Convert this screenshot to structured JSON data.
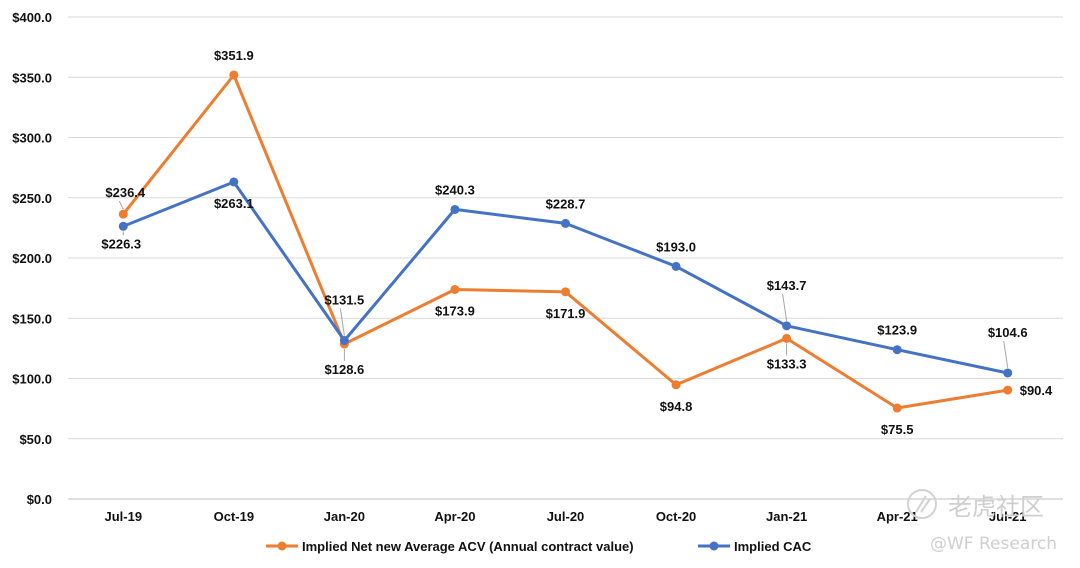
{
  "chart_data": {
    "type": "line",
    "categories": [
      "Jul-19",
      "Oct-19",
      "Jan-20",
      "Apr-20",
      "Jul-20",
      "Oct-20",
      "Jan-21",
      "Apr-21",
      "Jul-21"
    ],
    "series": [
      {
        "name": "Implied Net new Average ACV (Annual contract value)",
        "color": "#ED7D31",
        "values": [
          236.4,
          351.9,
          128.6,
          173.9,
          171.9,
          94.8,
          133.3,
          75.5,
          90.4
        ],
        "labels": [
          "$236.4",
          "$351.9",
          "$128.6",
          "$173.9",
          "$171.9",
          "$94.8",
          "$133.3",
          "$75.5",
          "$90.4"
        ]
      },
      {
        "name": "Implied CAC",
        "color": "#4472C4",
        "values": [
          226.3,
          263.1,
          131.5,
          240.3,
          228.7,
          193.0,
          143.7,
          123.9,
          104.6
        ],
        "labels": [
          "$226.3",
          "$263.1",
          "$131.5",
          "$240.3",
          "$228.7",
          "$193.0",
          "$143.7",
          "$123.9",
          "$104.6"
        ]
      }
    ],
    "yticks": [
      0,
      50,
      100,
      150,
      200,
      250,
      300,
      350,
      400
    ],
    "ytick_labels": [
      "$0.0",
      "$50.0",
      "$100.0",
      "$150.0",
      "$200.0",
      "$250.0",
      "$300.0",
      "$350.0",
      "$400.0"
    ],
    "ylim": [
      0,
      400
    ],
    "grid": true,
    "legend": "bottom-center",
    "title": "",
    "xlabel": "",
    "ylabel": ""
  },
  "watermark": {
    "brand": "老虎社区",
    "handle": "@WF Research"
  }
}
